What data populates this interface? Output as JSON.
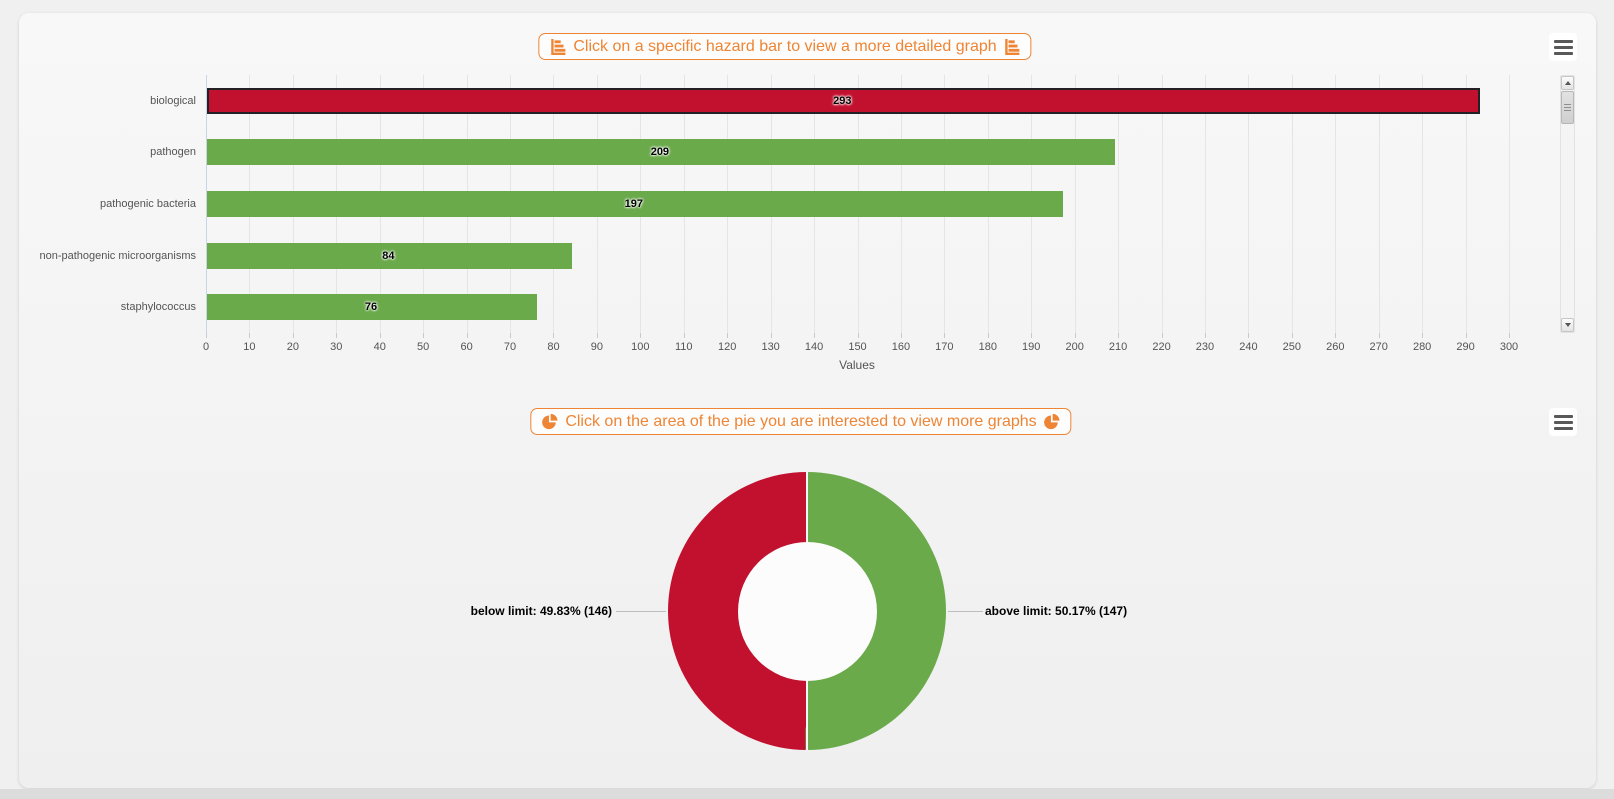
{
  "colors": {
    "red": "#c2112f",
    "green": "#6aaa4b",
    "orange": "#ee8534",
    "grid": "#e5e5e5",
    "axis_line": "#c9d4e4"
  },
  "icons": [
    "bar-chart-icon",
    "pie-chart-icon",
    "hamburger-menu-icon",
    "scrollbar-up-arrow-icon",
    "scrollbar-down-arrow-icon"
  ],
  "chart_data": [
    {
      "type": "bar",
      "orientation": "horizontal",
      "title": "Click on a specific hazard bar to view a more detailed graph",
      "categories": [
        "biological",
        "pathogen",
        "pathogenic bacteria",
        "non-pathogenic microorganisms",
        "staphylococcus"
      ],
      "values": [
        293,
        209,
        197,
        84,
        76
      ],
      "bar_colors": [
        "#c2112f",
        "#6aaa4b",
        "#6aaa4b",
        "#6aaa4b",
        "#6aaa4b"
      ],
      "highlighted_bar": "biological",
      "value_labels": [
        293,
        209,
        197,
        84,
        76
      ],
      "xlabel": "Values",
      "xlim": [
        0,
        300
      ],
      "tick_step": 10,
      "grid": true,
      "legend": false,
      "scrollbar": true
    },
    {
      "type": "pie",
      "subtype": "donut",
      "title": "Click on the area of the pie you are interested to view more graphs",
      "labels": [
        "below limit",
        "above limit"
      ],
      "values": [
        146,
        147
      ],
      "percents": [
        49.83,
        50.17
      ],
      "display_labels": [
        "below limit: 49.83% (146)",
        "above limit: 50.17% (147)"
      ],
      "colors": [
        "#c2112f",
        "#6aaa4b"
      ],
      "start_angle_deg": 0,
      "legend": false
    }
  ]
}
